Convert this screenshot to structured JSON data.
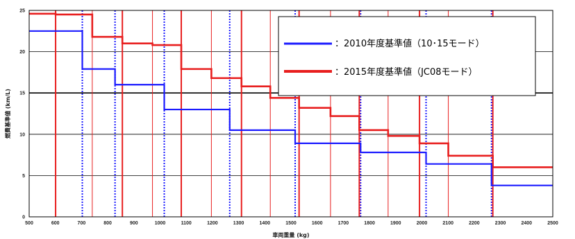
{
  "chart_data": {
    "type": "line",
    "title": "",
    "xlabel": "車両重量 (kg)",
    "ylabel": "燃費基準値 (km/L)",
    "xlim": [
      500,
      2500
    ],
    "ylim": [
      0,
      25
    ],
    "grid": true,
    "legend_placement": "top-right",
    "x_ticks": [
      500,
      600,
      700,
      800,
      900,
      1000,
      1100,
      1200,
      1300,
      1400,
      1500,
      1600,
      1700,
      1800,
      1900,
      2000,
      2100,
      2200,
      2300,
      2400,
      2500
    ],
    "x_tick_labels": [
      "500",
      "600",
      "700",
      "800",
      "900",
      "1000",
      "1100",
      "1200",
      "1300",
      "1400",
      "1500",
      "1600",
      "1700",
      "1800",
      "1900",
      "2000",
      "2100",
      "2200",
      "2300",
      "2400",
      "2500"
    ],
    "y_ticks": [
      0,
      5,
      10,
      15,
      20,
      25
    ],
    "y_tick_labels": [
      "0",
      "5",
      "10",
      "15",
      "20",
      "25"
    ],
    "series": [
      {
        "name": "：2010年度基準値（10･15モード）",
        "color": "#1a1aff",
        "style": "step",
        "boundaries": [
          500,
          703,
          828,
          1016,
          1266,
          1516,
          1766,
          2016,
          2266,
          2500
        ],
        "values": [
          22.5,
          17.9,
          16.0,
          13.0,
          10.5,
          8.9,
          7.8,
          6.4,
          3.8
        ],
        "reference_lines": [
          703,
          828,
          1016,
          1266,
          1516,
          1766,
          2016,
          2266
        ]
      },
      {
        "name": "：2015年度基準値（JC08モード）",
        "color": "#e81e1e",
        "style": "step",
        "boundaries": [
          500,
          601,
          741,
          856,
          971,
          1081,
          1196,
          1311,
          1421,
          1531,
          1651,
          1761,
          1871,
          1991,
          2101,
          2271,
          2500
        ],
        "values": [
          24.6,
          24.5,
          21.8,
          21.0,
          20.8,
          17.9,
          16.8,
          15.8,
          14.4,
          13.2,
          12.2,
          10.5,
          9.8,
          8.9,
          7.4,
          6.0
        ],
        "reference_lines": [
          601,
          741,
          856,
          971,
          1081,
          1196,
          1311,
          1421,
          1531,
          1651,
          1761,
          1871,
          1991,
          2101,
          2271
        ]
      }
    ]
  }
}
